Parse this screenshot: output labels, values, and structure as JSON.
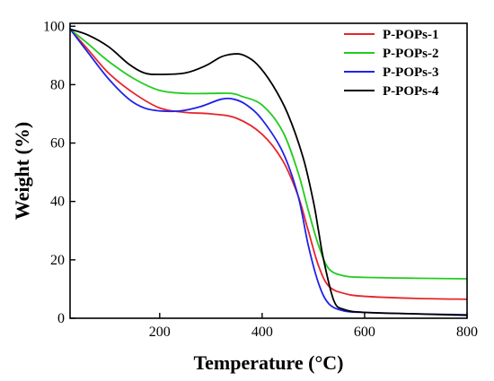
{
  "chart_data": {
    "type": "line",
    "xlabel": "Temperature (°C)",
    "ylabel": "Weight (%)",
    "xlim": [
      25,
      800
    ],
    "ylim": [
      0,
      101
    ],
    "xticks": [
      200,
      400,
      600,
      800
    ],
    "yticks": [
      0,
      20,
      40,
      60,
      80,
      100
    ],
    "grid": false,
    "legend_position": "top-right",
    "series": [
      {
        "name": "P-POPs-1",
        "color": "#e8242a",
        "x": [
          25,
          60,
          100,
          150,
          200,
          250,
          300,
          350,
          400,
          440,
          470,
          490,
          510,
          530,
          560,
          600,
          700,
          800
        ],
        "y": [
          99,
          92,
          84,
          77,
          72,
          70.5,
          70,
          68.5,
          63,
          54,
          42,
          30,
          18,
          11,
          8.5,
          7.5,
          6.8,
          6.5
        ]
      },
      {
        "name": "P-POPs-2",
        "color": "#22cc1f",
        "x": [
          25,
          60,
          100,
          150,
          200,
          250,
          300,
          340,
          360,
          400,
          440,
          470,
          490,
          510,
          530,
          560,
          600,
          700,
          800
        ],
        "y": [
          99,
          94,
          88,
          82,
          78,
          77,
          77,
          77,
          76,
          73,
          64,
          50,
          37,
          25,
          17,
          14.5,
          14,
          13.7,
          13.5
        ]
      },
      {
        "name": "P-POPs-3",
        "color": "#1f22e8",
        "x": [
          25,
          60,
          100,
          140,
          170,
          200,
          240,
          280,
          320,
          345,
          370,
          400,
          440,
          470,
          490,
          510,
          530,
          560,
          600,
          700,
          800
        ],
        "y": [
          99,
          91,
          82,
          75,
          72,
          71,
          71,
          72.5,
          75,
          75,
          73,
          68,
          57,
          42,
          25,
          12,
          5,
          2.5,
          2,
          1.5,
          1.2
        ]
      },
      {
        "name": "P-POPs-4",
        "color": "#000000",
        "x": [
          25,
          60,
          100,
          140,
          170,
          200,
          250,
          290,
          320,
          345,
          365,
          390,
          420,
          450,
          480,
          500,
          510,
          520,
          540,
          560,
          600,
          700,
          800
        ],
        "y": [
          99,
          97,
          93,
          87,
          84,
          83.5,
          84,
          86.5,
          89.5,
          90.5,
          90,
          87,
          80,
          70,
          55,
          40,
          30,
          20,
          6,
          3,
          2,
          1.5,
          1
        ]
      }
    ]
  }
}
